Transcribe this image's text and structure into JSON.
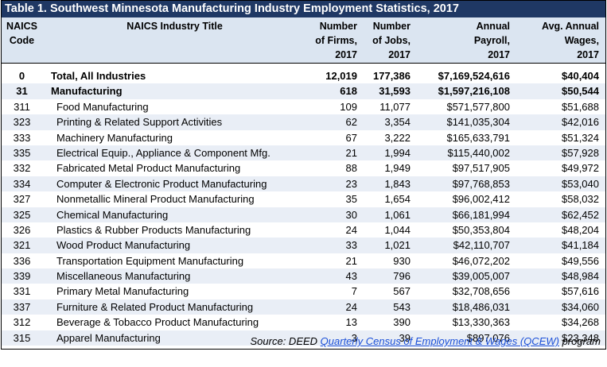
{
  "title": "Table 1. Southwest Minnesota Manufacturing Industry Employment Statistics, 2017",
  "headers": {
    "code": [
      "NAICS",
      "Code"
    ],
    "title": [
      "NAICS Industry Title"
    ],
    "firms": [
      "Number",
      "of Firms,",
      "2017"
    ],
    "jobs": [
      "Number",
      "of Jobs,",
      "2017"
    ],
    "payroll": [
      "Annual",
      "Payroll,",
      "2017"
    ],
    "wages": [
      "Avg. Annual",
      "Wages,",
      "2017"
    ]
  },
  "rows": [
    {
      "code": "0",
      "title": "Total, All Industries",
      "firms": "12,019",
      "jobs": "177,386",
      "payroll": "$7,169,524,616",
      "wages": "$40,404",
      "bold": true,
      "level": 0
    },
    {
      "code": "31",
      "title": "Manufacturing",
      "firms": "618",
      "jobs": "31,593",
      "payroll": "$1,597,216,108",
      "wages": "$50,544",
      "bold": true,
      "level": 0
    },
    {
      "code": "311",
      "title": "Food Manufacturing",
      "firms": "109",
      "jobs": "11,077",
      "payroll": "$571,577,800",
      "wages": "$51,688",
      "level": 1
    },
    {
      "code": "323",
      "title": "Printing & Related Support Activities",
      "firms": "62",
      "jobs": "3,354",
      "payroll": "$141,035,304",
      "wages": "$42,016",
      "level": 1
    },
    {
      "code": "333",
      "title": "Machinery Manufacturing",
      "firms": "67",
      "jobs": "3,222",
      "payroll": "$165,633,791",
      "wages": "$51,324",
      "level": 1
    },
    {
      "code": "335",
      "title": "Electrical Equip., Appliance & Component Mfg.",
      "firms": "21",
      "jobs": "1,994",
      "payroll": "$115,440,002",
      "wages": "$57,928",
      "level": 1
    },
    {
      "code": "332",
      "title": "Fabricated Metal Product Manufacturing",
      "firms": "88",
      "jobs": "1,949",
      "payroll": "$97,517,905",
      "wages": "$49,972",
      "level": 1
    },
    {
      "code": "334",
      "title": "Computer & Electronic Product Manufacturing",
      "firms": "23",
      "jobs": "1,843",
      "payroll": "$97,768,853",
      "wages": "$53,040",
      "level": 1
    },
    {
      "code": "327",
      "title": "Nonmetallic Mineral Product Manufacturing",
      "firms": "35",
      "jobs": "1,654",
      "payroll": "$96,002,412",
      "wages": "$58,032",
      "level": 1
    },
    {
      "code": "325",
      "title": "Chemical Manufacturing",
      "firms": "30",
      "jobs": "1,061",
      "payroll": "$66,181,994",
      "wages": "$62,452",
      "level": 1
    },
    {
      "code": "326",
      "title": "Plastics & Rubber Products Manufacturing",
      "firms": "24",
      "jobs": "1,044",
      "payroll": "$50,353,804",
      "wages": "$48,204",
      "level": 1
    },
    {
      "code": "321",
      "title": "Wood Product Manufacturing",
      "firms": "33",
      "jobs": "1,021",
      "payroll": "$42,110,707",
      "wages": "$41,184",
      "level": 1
    },
    {
      "code": "336",
      "title": "Transportation Equipment Manufacturing",
      "firms": "21",
      "jobs": "930",
      "payroll": "$46,072,202",
      "wages": "$49,556",
      "level": 1
    },
    {
      "code": "339",
      "title": "Miscellaneous Manufacturing",
      "firms": "43",
      "jobs": "796",
      "payroll": "$39,005,007",
      "wages": "$48,984",
      "level": 1
    },
    {
      "code": "331",
      "title": "Primary Metal Manufacturing",
      "firms": "7",
      "jobs": "567",
      "payroll": "$32,708,656",
      "wages": "$57,616",
      "level": 1
    },
    {
      "code": "337",
      "title": "Furniture & Related Product Manufacturing",
      "firms": "24",
      "jobs": "543",
      "payroll": "$18,486,031",
      "wages": "$34,060",
      "level": 1
    },
    {
      "code": "312",
      "title": "Beverage & Tobacco Product Manufacturing",
      "firms": "13",
      "jobs": "390",
      "payroll": "$13,330,363",
      "wages": "$34,268",
      "level": 1
    },
    {
      "code": "315",
      "title": "Apparel Manufacturing",
      "firms": "3",
      "jobs": "39",
      "payroll": "$897,076",
      "wages": "$23,348",
      "level": 1
    }
  ],
  "source": {
    "prefix": "Source: DEED ",
    "link_text": "Quarterly Census of Employment & Wages (QCEW)",
    "suffix": " program"
  },
  "colors": {
    "title_bg": "#1f3864",
    "header_bg": "#dbe5f1",
    "stripe_bg": "#e9eef6",
    "link": "#1a4fd8"
  }
}
